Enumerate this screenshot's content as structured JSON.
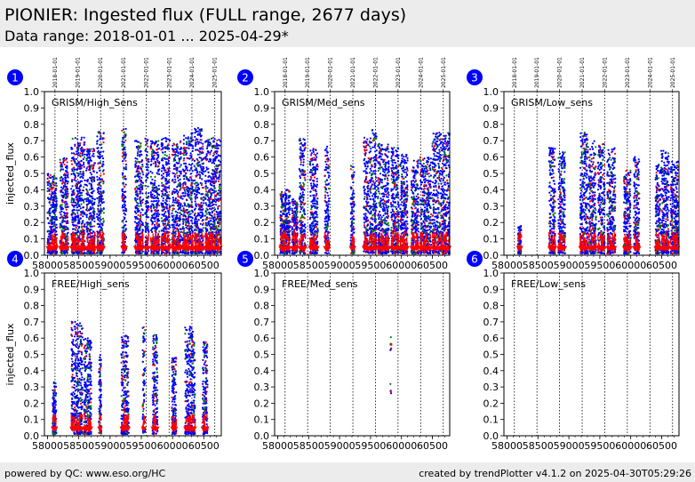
{
  "header": {
    "title": "PIONIER: Ingested flux (FULL range, 2677 days)",
    "subtitle": "Data range: 2018-01-01 ... 2025-04-29*"
  },
  "footer": {
    "left": "powered by QC: www.eso.org/HC",
    "right": "created by trendPlotter v4.1.2 on 2025-04-30T05:29:26"
  },
  "colors": {
    "series_a": "#0000ff",
    "series_b": "#008000",
    "series_c": "#ff0000",
    "badge": "#0000ff"
  },
  "chart_data": [
    {
      "type": "scatter",
      "panel_number": "1",
      "annotation": "GRISM/High_Sens",
      "ylabel": "injected_flux",
      "ylim": [
        0,
        1.0
      ],
      "xlim": [
        57950,
        60780
      ],
      "x_ticks": [
        "58000",
        "58500",
        "59000",
        "59500",
        "60000",
        "60500"
      ],
      "y_ticks": [
        "0.0",
        "0.1",
        "0.2",
        "0.3",
        "0.4",
        "0.5",
        "0.6",
        "0.7",
        "0.8",
        "0.9",
        "1.0"
      ],
      "year_labels": [
        "2018-01-01",
        "2019-01-01",
        "2020-01-01",
        "2021-01-01",
        "2022-01-01",
        "2023-01-01",
        "2024-01-01",
        "2025-01-01"
      ],
      "year_mjd": [
        58119,
        58484,
        58849,
        59215,
        59580,
        59945,
        60310,
        60676
      ],
      "clusters": [
        {
          "x": [
            58000,
            58150
          ],
          "ymax": 0.5
        },
        {
          "x": [
            58200,
            58330
          ],
          "ymax": 0.6
        },
        {
          "x": [
            58380,
            58600
          ],
          "ymax": 0.72
        },
        {
          "x": [
            58620,
            58760
          ],
          "ymax": 0.65
        },
        {
          "x": [
            58790,
            58900
          ],
          "ymax": 0.76
        },
        {
          "x": [
            59190,
            59260
          ],
          "ymax": 0.78
        },
        {
          "x": [
            59400,
            59530
          ],
          "ymax": 0.7
        },
        {
          "x": [
            59560,
            59620
          ],
          "ymax": 0.72
        },
        {
          "x": [
            59650,
            59790
          ],
          "ymax": 0.7
        },
        {
          "x": [
            59820,
            59960
          ],
          "ymax": 0.72
        },
        {
          "x": [
            59990,
            60140
          ],
          "ymax": 0.7
        },
        {
          "x": [
            60160,
            60330
          ],
          "ymax": 0.75
        },
        {
          "x": [
            60350,
            60500
          ],
          "ymax": 0.78
        },
        {
          "x": [
            60520,
            60770
          ],
          "ymax": 0.72
        }
      ],
      "band": {
        "ymin": 0.04,
        "ymax": 0.13
      }
    },
    {
      "type": "scatter",
      "panel_number": "2",
      "annotation": "GRISM/Med_sens",
      "ylabel": "",
      "ylim": [
        0,
        1.0
      ],
      "xlim": [
        57950,
        60780
      ],
      "x_ticks": [
        "58000",
        "58500",
        "59000",
        "59500",
        "60000",
        "60500"
      ],
      "y_ticks": [
        "0.0",
        "0.1",
        "0.2",
        "0.3",
        "0.4",
        "0.5",
        "0.6",
        "0.7",
        "0.8",
        "0.9",
        "1.0"
      ],
      "year_labels": [
        "2018-01-01",
        "2019-01-01",
        "2020-01-01",
        "2021-01-01",
        "2022-01-01",
        "2023-01-01",
        "2024-01-01",
        "2025-01-01"
      ],
      "year_mjd": [
        58119,
        58484,
        58849,
        59215,
        59580,
        59945,
        60310,
        60676
      ],
      "clusters": [
        {
          "x": [
            58040,
            58200
          ],
          "ymax": 0.4
        },
        {
          "x": [
            58230,
            58320
          ],
          "ymax": 0.35
        },
        {
          "x": [
            58350,
            58450
          ],
          "ymax": 0.72
        },
        {
          "x": [
            58520,
            58650
          ],
          "ymax": 0.65
        },
        {
          "x": [
            58760,
            58830
          ],
          "ymax": 0.67
        },
        {
          "x": [
            59180,
            59240
          ],
          "ymax": 0.55
        },
        {
          "x": [
            59390,
            59470
          ],
          "ymax": 0.72
        },
        {
          "x": [
            59480,
            59600
          ],
          "ymax": 0.78
        },
        {
          "x": [
            59620,
            59800
          ],
          "ymax": 0.68
        },
        {
          "x": [
            59830,
            59960
          ],
          "ymax": 0.66
        },
        {
          "x": [
            59980,
            60100
          ],
          "ymax": 0.62
        },
        {
          "x": [
            60160,
            60280
          ],
          "ymax": 0.58
        },
        {
          "x": [
            60300,
            60480
          ],
          "ymax": 0.6
        },
        {
          "x": [
            60500,
            60780
          ],
          "ymax": 0.75
        }
      ],
      "band": {
        "ymin": 0.04,
        "ymax": 0.13
      }
    },
    {
      "type": "scatter",
      "panel_number": "3",
      "annotation": "GRISM/Low_sens",
      "ylabel": "",
      "ylim": [
        0,
        1.0
      ],
      "xlim": [
        57950,
        60780
      ],
      "x_ticks": [
        "58000",
        "58500",
        "59000",
        "59500",
        "60000",
        "60500"
      ],
      "y_ticks": [
        "0.0",
        "0.1",
        "0.2",
        "0.3",
        "0.4",
        "0.5",
        "0.6",
        "0.7",
        "0.8",
        "0.9",
        "1.0"
      ],
      "year_labels": [
        "2018-01-01",
        "2019-01-01",
        "2020-01-01",
        "2021-01-01",
        "2022-01-01",
        "2023-01-01",
        "2024-01-01",
        "2025-01-01"
      ],
      "year_mjd": [
        58119,
        58484,
        58849,
        59215,
        59580,
        59945,
        60310,
        60676
      ],
      "clusters": [
        {
          "x": [
            58180,
            58230
          ],
          "ymax": 0.18
        },
        {
          "x": [
            58680,
            58780
          ],
          "ymax": 0.66
        },
        {
          "x": [
            58830,
            58940
          ],
          "ymax": 0.63
        },
        {
          "x": [
            59180,
            59310
          ],
          "ymax": 0.75
        },
        {
          "x": [
            59320,
            59440
          ],
          "ymax": 0.7
        },
        {
          "x": [
            59470,
            59580
          ],
          "ymax": 0.68
        },
        {
          "x": [
            59620,
            59750
          ],
          "ymax": 0.66
        },
        {
          "x": [
            59890,
            60000
          ],
          "ymax": 0.52
        },
        {
          "x": [
            60050,
            60140
          ],
          "ymax": 0.6
        },
        {
          "x": [
            60400,
            60480
          ],
          "ymax": 0.58
        },
        {
          "x": [
            60490,
            60620
          ],
          "ymax": 0.64
        },
        {
          "x": [
            60640,
            60770
          ],
          "ymax": 0.58
        }
      ],
      "band": {
        "ymin": 0.04,
        "ymax": 0.13
      }
    },
    {
      "type": "scatter",
      "panel_number": "4",
      "annotation": "FREE/High_sens",
      "ylabel": "injected_flux",
      "ylim": [
        0,
        1.0
      ],
      "xlim": [
        57950,
        60780
      ],
      "x_ticks": [
        "58000",
        "58500",
        "59000",
        "59500",
        "60000",
        "60500"
      ],
      "y_ticks": [
        "0.0",
        "0.1",
        "0.2",
        "0.3",
        "0.4",
        "0.5",
        "0.6",
        "0.7",
        "0.8",
        "0.9",
        "1.0"
      ],
      "year_labels": [],
      "year_mjd": [
        58119,
        58484,
        58849,
        59215,
        59580,
        59945,
        60310,
        60676
      ],
      "clusters": [
        {
          "x": [
            58080,
            58140
          ],
          "ymax": 0.33
        },
        {
          "x": [
            58380,
            58560
          ],
          "ymax": 0.7
        },
        {
          "x": [
            58580,
            58700
          ],
          "ymax": 0.6
        },
        {
          "x": [
            58820,
            58860
          ],
          "ymax": 0.5
        },
        {
          "x": [
            59180,
            59300
          ],
          "ymax": 0.62
        },
        {
          "x": [
            59520,
            59560
          ],
          "ymax": 0.67
        },
        {
          "x": [
            59680,
            59760
          ],
          "ymax": 0.62
        },
        {
          "x": [
            59990,
            60060
          ],
          "ymax": 0.48
        },
        {
          "x": [
            60200,
            60360
          ],
          "ymax": 0.67
        },
        {
          "x": [
            60480,
            60560
          ],
          "ymax": 0.58
        }
      ],
      "band": {
        "ymin": 0.04,
        "ymax": 0.12
      }
    },
    {
      "type": "scatter",
      "panel_number": "5",
      "annotation": "FREE/Med_sens",
      "ylabel": "",
      "ylim": [
        0,
        1.0
      ],
      "xlim": [
        57950,
        60780
      ],
      "x_ticks": [
        "58000",
        "58500",
        "59000",
        "59500",
        "60000",
        "60500"
      ],
      "y_ticks": [
        "0.0",
        "0.1",
        "0.2",
        "0.3",
        "0.4",
        "0.5",
        "0.6",
        "0.7",
        "0.8",
        "0.9",
        "1.0"
      ],
      "year_labels": [],
      "year_mjd": [
        58119,
        58484,
        58849,
        59215,
        59580,
        59945,
        60310,
        60676
      ],
      "clusters": [
        {
          "x": [
            59820,
            59840
          ],
          "ymax": 0.64,
          "ymin": 0.26,
          "sparse": true
        }
      ],
      "band": null
    },
    {
      "type": "scatter",
      "panel_number": "6",
      "annotation": "FREE/Low_sens",
      "ylabel": "",
      "ylim": [
        0,
        1.0
      ],
      "xlim": [
        57950,
        60780
      ],
      "x_ticks": [
        "58000",
        "58500",
        "59000",
        "59500",
        "60000",
        "60500"
      ],
      "y_ticks": [
        "0.0",
        "0.1",
        "0.2",
        "0.3",
        "0.4",
        "0.5",
        "0.6",
        "0.7",
        "0.8",
        "0.9",
        "1.0"
      ],
      "year_labels": [],
      "year_mjd": [
        58119,
        58484,
        58849,
        59215,
        59580,
        59945,
        60310,
        60676
      ],
      "clusters": [],
      "band": null
    }
  ]
}
